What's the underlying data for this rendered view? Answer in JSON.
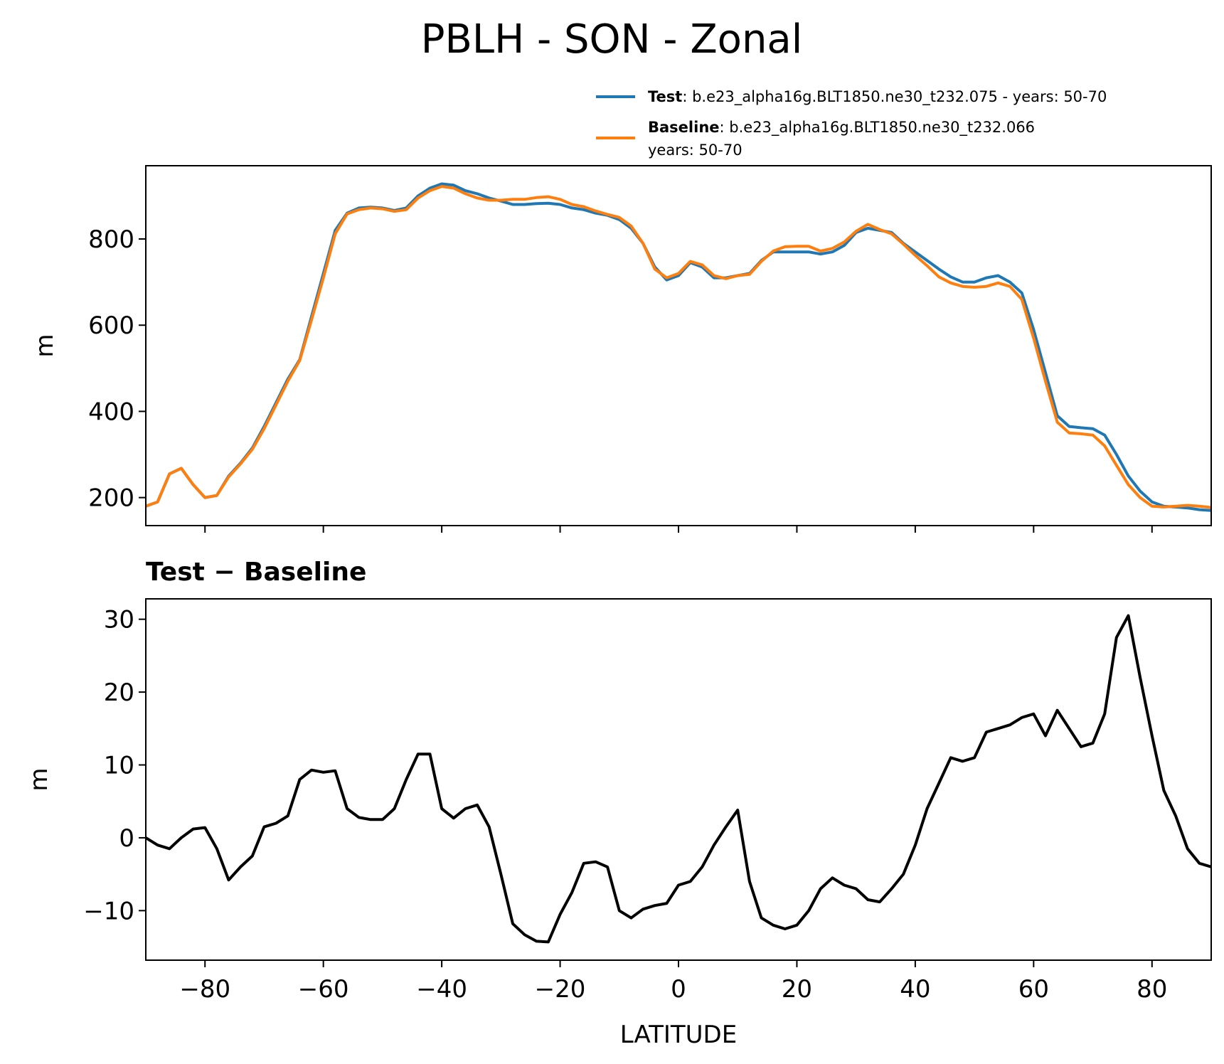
{
  "figure": {
    "title": "PBLH - SON - Zonal",
    "legend": [
      {
        "label_bold": "Test",
        "label_rest": ": b.e23_alpha16g.BLT1850.ne30_t232.075 - years: 50-70",
        "label_line2": "",
        "color": "#1f77b4"
      },
      {
        "label_bold": "Baseline",
        "label_rest": ": b.e23_alpha16g.BLT1850.ne30_t232.066",
        "label_line2": "years: 50-70",
        "color": "#ff7f0e"
      }
    ]
  },
  "chart_data": [
    {
      "type": "line",
      "title": "",
      "xlabel": "",
      "ylabel": "m",
      "xlim": [
        -90,
        90
      ],
      "ylim": [
        135,
        970
      ],
      "yticks": [
        200,
        400,
        600,
        800
      ],
      "xticks": [
        -80,
        -60,
        -40,
        -20,
        0,
        20,
        40,
        60,
        80
      ],
      "show_xtick_labels": false,
      "grid": false,
      "x": [
        -90,
        -88,
        -86,
        -84,
        -82,
        -80,
        -78,
        -76,
        -74,
        -72,
        -70,
        -68,
        -66,
        -64,
        -62,
        -60,
        -58,
        -56,
        -54,
        -52,
        -50,
        -48,
        -46,
        -44,
        -42,
        -40,
        -38,
        -36,
        -34,
        -32,
        -30,
        -28,
        -26,
        -24,
        -22,
        -20,
        -18,
        -16,
        -14,
        -12,
        -10,
        -8,
        -6,
        -4,
        -2,
        0,
        2,
        4,
        6,
        8,
        10,
        12,
        14,
        16,
        18,
        20,
        22,
        24,
        26,
        28,
        30,
        32,
        34,
        36,
        38,
        40,
        42,
        44,
        46,
        48,
        50,
        52,
        54,
        56,
        58,
        60,
        62,
        64,
        66,
        68,
        70,
        72,
        74,
        76,
        78,
        80,
        82,
        84,
        86,
        88,
        90
      ],
      "series": [
        {
          "name": "Test",
          "color": "#1f77b4",
          "values": [
            180,
            190,
            255,
            268,
            230,
            200,
            205,
            250,
            280,
            315,
            365,
            420,
            475,
            520,
            620,
            720,
            820,
            860,
            872,
            874,
            872,
            866,
            872,
            900,
            918,
            928,
            925,
            912,
            905,
            895,
            888,
            880,
            880,
            882,
            883,
            880,
            872,
            868,
            860,
            855,
            845,
            825,
            790,
            735,
            705,
            715,
            745,
            735,
            710,
            710,
            715,
            720,
            750,
            770,
            770,
            770,
            770,
            765,
            770,
            785,
            815,
            825,
            820,
            815,
            790,
            770,
            750,
            730,
            712,
            700,
            700,
            710,
            715,
            700,
            675,
            590,
            490,
            390,
            365,
            362,
            360,
            345,
            300,
            250,
            215,
            190,
            180,
            178,
            176,
            172,
            170
          ],
          "show_legend": true
        },
        {
          "name": "Baseline",
          "color": "#ff7f0e",
          "values": [
            180,
            190,
            255,
            268,
            230,
            200,
            205,
            248,
            278,
            312,
            360,
            415,
            470,
            518,
            612,
            710,
            812,
            858,
            868,
            872,
            870,
            864,
            868,
            895,
            912,
            922,
            918,
            905,
            895,
            890,
            890,
            892,
            892,
            896,
            898,
            892,
            880,
            875,
            865,
            857,
            850,
            830,
            790,
            730,
            710,
            720,
            748,
            740,
            715,
            708,
            715,
            718,
            748,
            772,
            782,
            783,
            783,
            772,
            778,
            793,
            818,
            834,
            822,
            812,
            788,
            762,
            738,
            712,
            698,
            690,
            688,
            690,
            698,
            690,
            660,
            570,
            470,
            375,
            350,
            348,
            345,
            320,
            275,
            230,
            200,
            180,
            178,
            180,
            182,
            180,
            177
          ],
          "show_legend": true
        }
      ]
    },
    {
      "type": "line",
      "title": "Test − Baseline",
      "xlabel": "LATITUDE",
      "ylabel": "m",
      "xlim": [
        -90,
        90
      ],
      "ylim": [
        -16.8,
        32.8
      ],
      "yticks": [
        -10,
        0,
        10,
        20,
        30
      ],
      "xticks": [
        -80,
        -60,
        -40,
        -20,
        0,
        20,
        40,
        60,
        80
      ],
      "show_xtick_labels": true,
      "grid": false,
      "x": [
        -90,
        -88,
        -86,
        -84,
        -82,
        -80,
        -78,
        -76,
        -74,
        -72,
        -70,
        -68,
        -66,
        -64,
        -62,
        -60,
        -58,
        -56,
        -54,
        -52,
        -50,
        -48,
        -46,
        -44,
        -42,
        -40,
        -38,
        -36,
        -34,
        -32,
        -30,
        -28,
        -26,
        -24,
        -22,
        -20,
        -18,
        -16,
        -14,
        -12,
        -10,
        -8,
        -6,
        -4,
        -2,
        0,
        2,
        4,
        6,
        8,
        10,
        12,
        14,
        16,
        18,
        20,
        22,
        24,
        26,
        28,
        30,
        32,
        34,
        36,
        38,
        40,
        42,
        44,
        46,
        48,
        50,
        52,
        54,
        56,
        58,
        60,
        62,
        64,
        66,
        68,
        70,
        72,
        74,
        76,
        78,
        80,
        82,
        84,
        86,
        88,
        90
      ],
      "series": [
        {
          "name": "",
          "color": "#000000",
          "values": [
            0,
            -1,
            -1.5,
            0,
            1.2,
            1.4,
            -1.5,
            -5.8,
            -4,
            -2.5,
            1.5,
            2,
            3,
            8,
            9.3,
            9,
            9.2,
            4,
            2.8,
            2.5,
            2.5,
            4,
            8,
            11.5,
            11.5,
            4,
            2.7,
            4,
            4.5,
            1.5,
            -5,
            -11.8,
            -13.3,
            -14.2,
            -14.3,
            -10.5,
            -7.5,
            -3.5,
            -3.3,
            -4,
            -10,
            -11,
            -9.8,
            -9.3,
            -9,
            -6.5,
            -6,
            -4,
            -1,
            1.5,
            3.8,
            -6,
            -11,
            -12,
            -12.5,
            -12,
            -10,
            -7,
            -5.5,
            -6.5,
            -7,
            -8.5,
            -8.8,
            -7,
            -5,
            -1,
            4,
            7.5,
            11,
            10.5,
            11,
            14.5,
            15,
            15.5,
            16.5,
            17,
            14,
            17.5,
            15,
            12.5,
            13,
            17,
            27.5,
            30.5,
            22,
            14,
            6.5,
            3,
            -1.5,
            -3.5,
            -4
          ],
          "show_legend": false
        }
      ]
    }
  ]
}
